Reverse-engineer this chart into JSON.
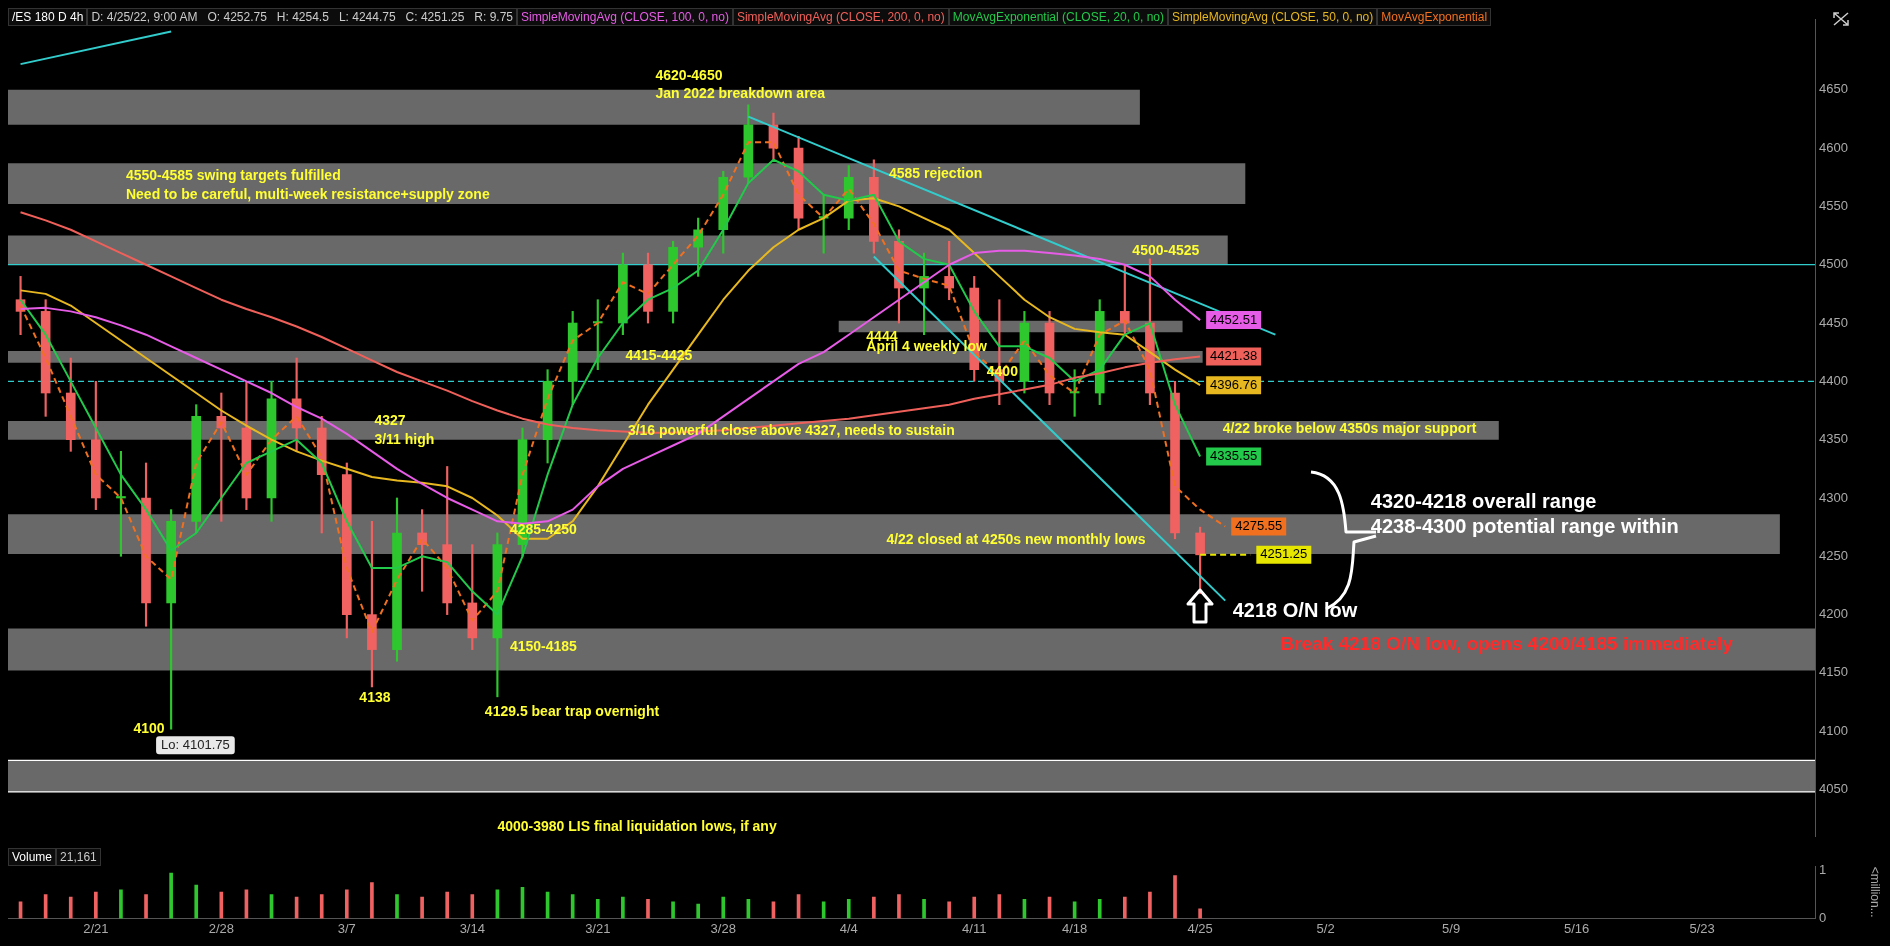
{
  "chart_data": [
    {
      "type": "candlestick",
      "title": "/ES 180 D 4h",
      "subtitle": "D: 4/25/22, 9:00 AM   O: 4252.75   H: 4254.5   L: 4244.75   C: 4251.25   R: 9.75",
      "categories": [
        null,
        null,
        null,
        "2/21",
        null,
        null,
        null,
        null,
        "2/28",
        null,
        null,
        null,
        null,
        "3/7",
        null,
        null,
        null,
        null,
        "3/14",
        null,
        null,
        null,
        null,
        "3/21",
        null,
        null,
        null,
        null,
        "3/28",
        null,
        null,
        null,
        null,
        "4/4",
        null,
        null,
        null,
        null,
        "4/11",
        null,
        null,
        null,
        "4/18",
        null,
        null,
        null,
        null,
        "4/25",
        null,
        null,
        null,
        null,
        "5/2",
        null,
        null,
        null,
        null,
        "5/9",
        null,
        null,
        null,
        null,
        "5/16",
        null,
        null,
        null,
        null,
        "5/23",
        null,
        null,
        null,
        null
      ],
      "ohlc": [
        [
          4470,
          4490,
          4440,
          4460
        ],
        [
          4460,
          4470,
          4370,
          4390
        ],
        [
          4390,
          4420,
          4340,
          4350
        ],
        [
          4350,
          4400,
          4290,
          4300
        ],
        [
          4300,
          4340,
          4250,
          4300
        ],
        [
          4300,
          4330,
          4190,
          4210
        ],
        [
          4210,
          4290,
          4101.75,
          4280
        ],
        [
          4280,
          4380,
          4270,
          4370
        ],
        [
          4370,
          4390,
          4280,
          4360
        ],
        [
          4360,
          4400,
          4290,
          4300
        ],
        [
          4300,
          4400,
          4280,
          4385
        ],
        [
          4385,
          4420,
          4340,
          4360
        ],
        [
          4360,
          4370,
          4270,
          4320
        ],
        [
          4320,
          4330,
          4180,
          4200
        ],
        [
          4200,
          4280,
          4138,
          4170
        ],
        [
          4170,
          4300,
          4160,
          4270
        ],
        [
          4270,
          4290,
          4220,
          4260
        ],
        [
          4260,
          4327,
          4200,
          4210
        ],
        [
          4210,
          4260,
          4170,
          4180
        ],
        [
          4180,
          4270,
          4129.5,
          4260
        ],
        [
          4260,
          4360,
          4250,
          4350
        ],
        [
          4350,
          4410,
          4330,
          4400
        ],
        [
          4400,
          4460,
          4380,
          4450
        ],
        [
          4450,
          4470,
          4410,
          4450
        ],
        [
          4450,
          4510,
          4440,
          4500
        ],
        [
          4500,
          4510,
          4450,
          4460
        ],
        [
          4460,
          4520,
          4450,
          4515
        ],
        [
          4515,
          4540,
          4490,
          4530
        ],
        [
          4530,
          4580,
          4510,
          4575
        ],
        [
          4575,
          4637,
          4570,
          4620
        ],
        [
          4620,
          4630,
          4590,
          4600
        ],
        [
          4600,
          4610,
          4530,
          4540
        ],
        [
          4540,
          4560,
          4510,
          4540
        ],
        [
          4540,
          4585,
          4530,
          4575
        ],
        [
          4575,
          4590,
          4510,
          4520
        ],
        [
          4520,
          4530,
          4450,
          4480
        ],
        [
          4480,
          4510,
          4440,
          4490
        ],
        [
          4490,
          4520,
          4470,
          4480
        ],
        [
          4480,
          4490,
          4400,
          4410
        ],
        [
          4410,
          4470,
          4380,
          4400
        ],
        [
          4400,
          4460,
          4390,
          4450
        ],
        [
          4450,
          4460,
          4380,
          4390
        ],
        [
          4390,
          4410,
          4370,
          4390
        ],
        [
          4390,
          4470,
          4380,
          4460
        ],
        [
          4460,
          4500,
          4440,
          4450
        ],
        [
          4450,
          4505,
          4380,
          4390
        ],
        [
          4390,
          4400,
          4265,
          4270
        ],
        [
          4270,
          4275,
          4218,
          4251.25
        ],
        null,
        null,
        null,
        null,
        null,
        null,
        null,
        null,
        null,
        null,
        null,
        null,
        null,
        null,
        null,
        null,
        null,
        null,
        null,
        null,
        null,
        null,
        null,
        null
      ],
      "colors": [
        "#f06262",
        "#f06262",
        "#f06262",
        "#f06262",
        "#2ec82e",
        "#f06262",
        "#2ec82e",
        "#2ec82e",
        "#f06262",
        "#f06262",
        "#2ec82e",
        "#f06262",
        "#f06262",
        "#f06262",
        "#f06262",
        "#2ec82e",
        "#f06262",
        "#f06262",
        "#f06262",
        "#2ec82e",
        "#2ec82e",
        "#2ec82e",
        "#2ec82e",
        "#2ec82e",
        "#2ec82e",
        "#f06262",
        "#2ec82e",
        "#2ec82e",
        "#2ec82e",
        "#2ec82e",
        "#f06262",
        "#f06262",
        "#2ec82e",
        "#2ec82e",
        "#f06262",
        "#f06262",
        "#2ec82e",
        "#f06262",
        "#f06262",
        "#f06262",
        "#2ec82e",
        "#f06262",
        "#2ec82e",
        "#2ec82e",
        "#f06262",
        "#f06262",
        "#f06262",
        "#f06262",
        null,
        null,
        null,
        null,
        null,
        null,
        null,
        null,
        null,
        null,
        null,
        null,
        null,
        null,
        null,
        null,
        null,
        null,
        null,
        null,
        null,
        null,
        null,
        null
      ],
      "series": [
        {
          "type": "line",
          "name": "SimpleMovingAvg (CLOSE, 100, 0, no)",
          "color": "#e75ce7",
          "values": [
            4462,
            4463,
            4460,
            4455,
            4448,
            4440,
            4430,
            4420,
            4410,
            4400,
            4390,
            4378,
            4368,
            4355,
            4340,
            4325,
            4312,
            4300,
            4290,
            4280,
            4278,
            4280,
            4290,
            4310,
            4325,
            4335,
            4345,
            4355,
            4370,
            4385,
            4400,
            4415,
            4425,
            4440,
            4455,
            4470,
            4485,
            4500,
            4510,
            4512,
            4512,
            4510,
            4508,
            4505,
            4500,
            4490,
            4470,
            4452.51,
            null,
            null,
            null,
            null,
            null,
            null,
            null,
            null,
            null,
            null,
            null,
            null,
            null,
            null,
            null,
            null,
            null,
            null,
            null,
            null,
            null,
            null,
            null,
            null
          ],
          "value_labels": [
            null,
            null,
            null,
            null,
            null,
            null,
            null,
            null,
            null,
            null,
            null,
            null,
            null,
            null,
            null,
            null,
            null,
            null,
            null,
            null,
            null,
            null,
            null,
            null,
            null,
            null,
            null,
            null,
            null,
            null,
            null,
            null,
            null,
            null,
            null,
            null,
            null,
            null,
            null,
            null,
            null,
            null,
            null,
            null,
            null,
            null,
            null,
            "4452.51",
            null,
            null,
            null,
            null,
            null,
            null,
            null,
            null,
            null,
            null,
            null,
            null,
            null,
            null,
            null,
            null,
            null,
            null,
            null,
            null,
            null,
            null,
            null,
            null
          ]
        },
        {
          "type": "line",
          "name": "SimpleMovingAvg (CLOSE, 200, 0, no)",
          "color": "#f0605a",
          "values": [
            4545,
            4538,
            4530,
            4520,
            4510,
            4500,
            4490,
            4480,
            4470,
            4462,
            4455,
            4447,
            4438,
            4428,
            4418,
            4408,
            4400,
            4392,
            4383,
            4375,
            4368,
            4363,
            4360,
            4358,
            4357,
            4356,
            4356,
            4357,
            4358,
            4360,
            4362,
            4364,
            4366,
            4368,
            4371,
            4374,
            4377,
            4380,
            4385,
            4389,
            4393,
            4397,
            4403,
            4407,
            4412,
            4416,
            4419,
            4421.38,
            null,
            null,
            null,
            null,
            null,
            null,
            null,
            null,
            null,
            null,
            null,
            null,
            null,
            null,
            null,
            null,
            null,
            null,
            null,
            null,
            null,
            null,
            null,
            null
          ],
          "value_labels": [
            null,
            null,
            null,
            null,
            null,
            null,
            null,
            null,
            null,
            null,
            null,
            null,
            null,
            null,
            null,
            null,
            null,
            null,
            null,
            null,
            null,
            null,
            null,
            null,
            null,
            null,
            null,
            null,
            null,
            null,
            null,
            null,
            null,
            null,
            null,
            null,
            null,
            null,
            null,
            null,
            null,
            null,
            null,
            null,
            null,
            null,
            null,
            "4421.38",
            null,
            null,
            null,
            null,
            null,
            null,
            null,
            null,
            null,
            null,
            null,
            null,
            null,
            null,
            null,
            null,
            null,
            null,
            null,
            null,
            null,
            null,
            null,
            null
          ]
        },
        {
          "type": "line",
          "name": "MovAvgExponential (CLOSE, 20, 0, no)",
          "color": "#22c94a",
          "values": [
            4470,
            4440,
            4400,
            4360,
            4320,
            4290,
            4255,
            4270,
            4300,
            4330,
            4340,
            4350,
            4330,
            4280,
            4240,
            4240,
            4250,
            4245,
            4220,
            4200,
            4250,
            4320,
            4380,
            4420,
            4450,
            4470,
            4480,
            4495,
            4530,
            4570,
            4590,
            4580,
            4560,
            4555,
            4560,
            4520,
            4505,
            4500,
            4460,
            4430,
            4430,
            4420,
            4400,
            4410,
            4440,
            4450,
            4380,
            4335.55,
            null,
            null,
            null,
            null,
            null,
            null,
            null,
            null,
            null,
            null,
            null,
            null,
            null,
            null,
            null,
            null,
            null,
            null,
            null,
            null,
            null,
            null,
            null,
            null
          ],
          "value_labels": [
            null,
            null,
            null,
            null,
            null,
            null,
            null,
            null,
            null,
            null,
            null,
            null,
            null,
            null,
            null,
            null,
            null,
            null,
            null,
            null,
            null,
            null,
            null,
            null,
            null,
            null,
            null,
            null,
            null,
            null,
            null,
            null,
            null,
            null,
            null,
            null,
            null,
            null,
            null,
            null,
            null,
            null,
            null,
            null,
            null,
            null,
            null,
            "4335.55",
            null,
            null,
            null,
            null,
            null,
            null,
            null,
            null,
            null,
            null,
            null,
            null,
            null,
            null,
            null,
            null,
            null,
            null,
            null,
            null,
            null,
            null,
            null,
            null
          ]
        },
        {
          "type": "line",
          "name": "SimpleMovingAvg (CLOSE, 50, 0, no)",
          "color": "#e8b820",
          "values": [
            4478,
            4475,
            4465,
            4450,
            4435,
            4420,
            4405,
            4390,
            4375,
            4362,
            4350,
            4340,
            4332,
            4325,
            4318,
            4315,
            4313,
            4310,
            4300,
            4285,
            4265,
            4265,
            4280,
            4310,
            4345,
            4380,
            4410,
            4440,
            4470,
            4495,
            4515,
            4530,
            4540,
            4555,
            4557,
            4550,
            4540,
            4530,
            4510,
            4490,
            4470,
            4455,
            4445,
            4442,
            4440,
            4425,
            4410,
            4396.76,
            null,
            null,
            null,
            null,
            null,
            null,
            null,
            null,
            null,
            null,
            null,
            null,
            null,
            null,
            null,
            null,
            null,
            null,
            null,
            null,
            null,
            null,
            null,
            null
          ],
          "value_labels": [
            null,
            null,
            null,
            null,
            null,
            null,
            null,
            null,
            null,
            null,
            null,
            null,
            null,
            null,
            null,
            null,
            null,
            null,
            null,
            null,
            null,
            null,
            null,
            null,
            null,
            null,
            null,
            null,
            null,
            null,
            null,
            null,
            null,
            null,
            null,
            null,
            null,
            null,
            null,
            null,
            null,
            null,
            null,
            null,
            null,
            null,
            null,
            "4396.76",
            null,
            null,
            null,
            null,
            null,
            null,
            null,
            null,
            null,
            null,
            null,
            null,
            null,
            null,
            null,
            null,
            null,
            null,
            null,
            null,
            null,
            null,
            null,
            null
          ]
        },
        {
          "type": "line",
          "name": "MovAvgExponential",
          "color": "#f07020",
          "line_style": "dashed",
          "values": [
            4465,
            4420,
            4370,
            4320,
            4300,
            4250,
            4230,
            4330,
            4365,
            4320,
            4350,
            4370,
            4335,
            4240,
            4185,
            4230,
            4265,
            4240,
            4195,
            4220,
            4320,
            4385,
            4435,
            4450,
            4485,
            4475,
            4500,
            4525,
            4560,
            4605,
            4605,
            4560,
            4540,
            4565,
            4535,
            4495,
            4488,
            4482,
            4425,
            4405,
            4435,
            4405,
            4390,
            4440,
            4452,
            4410,
            4310,
            4290,
            4275.55,
            null,
            null,
            null,
            null,
            null,
            null,
            null,
            null,
            null,
            null,
            null,
            null,
            null,
            null,
            null,
            null,
            null,
            null,
            null,
            null,
            null,
            null,
            null
          ],
          "value_labels": [
            null,
            null,
            null,
            null,
            null,
            null,
            null,
            null,
            null,
            null,
            null,
            null,
            null,
            null,
            null,
            null,
            null,
            null,
            null,
            null,
            null,
            null,
            null,
            null,
            null,
            null,
            null,
            null,
            null,
            null,
            null,
            null,
            null,
            null,
            null,
            null,
            null,
            null,
            null,
            null,
            null,
            null,
            null,
            null,
            null,
            null,
            null,
            null,
            "4275.55",
            null,
            null,
            null,
            null,
            null,
            null,
            null,
            null,
            null,
            null,
            null,
            null,
            null,
            null,
            null,
            null,
            null,
            null,
            null,
            null,
            null,
            null,
            null
          ]
        },
        {
          "type": "line",
          "color": "#e6e600",
          "line_style": "dashed",
          "values": [
            null,
            null,
            null,
            null,
            null,
            null,
            null,
            null,
            null,
            null,
            null,
            null,
            null,
            null,
            null,
            null,
            null,
            null,
            null,
            null,
            null,
            null,
            null,
            null,
            null,
            null,
            null,
            null,
            null,
            null,
            null,
            null,
            null,
            null,
            null,
            null,
            null,
            null,
            null,
            null,
            null,
            null,
            null,
            null,
            null,
            null,
            null,
            4251.25,
            4251.25,
            4251.25,
            null,
            null,
            null,
            null,
            null,
            null,
            null,
            null,
            null,
            null,
            null,
            null,
            null,
            null,
            null,
            null,
            null,
            null,
            null,
            null,
            null,
            null
          ],
          "value_labels": [
            null,
            null,
            null,
            null,
            null,
            null,
            null,
            null,
            null,
            null,
            null,
            null,
            null,
            null,
            null,
            null,
            null,
            null,
            null,
            null,
            null,
            null,
            null,
            null,
            null,
            null,
            null,
            null,
            null,
            null,
            null,
            null,
            null,
            null,
            null,
            null,
            null,
            null,
            null,
            null,
            null,
            null,
            null,
            null,
            null,
            null,
            null,
            null,
            null,
            "4251.25",
            null,
            null,
            null,
            null,
            null,
            null,
            null,
            null,
            null,
            null,
            null,
            null,
            null,
            null,
            null,
            null,
            null,
            null,
            null,
            null,
            null,
            null
          ]
        },
        {
          "type": "line",
          "color": "#33cccc",
          "values": [
            4672,
            null,
            null,
            null,
            null,
            null,
            4700,
            null,
            null,
            null,
            null,
            null,
            null,
            null,
            null,
            null,
            null,
            null,
            null,
            null,
            null,
            null,
            null,
            null,
            null,
            null,
            null,
            null,
            null,
            null,
            null,
            null,
            null,
            null,
            null,
            null,
            null,
            null,
            null,
            null,
            null,
            null,
            null,
            null,
            null,
            null,
            null,
            null,
            null,
            null,
            null,
            null,
            null,
            null,
            null,
            null,
            null,
            null,
            null,
            null,
            null,
            null,
            null,
            null,
            null,
            null,
            null,
            null,
            null,
            null,
            null,
            null
          ]
        },
        {
          "type": "line",
          "color": "#33cccc",
          "values": [
            null,
            null,
            null,
            null,
            null,
            null,
            null,
            null,
            null,
            null,
            null,
            null,
            null,
            null,
            null,
            null,
            null,
            null,
            null,
            null,
            null,
            null,
            null,
            null,
            null,
            null,
            null,
            null,
            null,
            4627,
            null,
            null,
            null,
            null,
            null,
            null,
            null,
            null,
            null,
            null,
            null,
            null,
            null,
            null,
            null,
            null,
            null,
            null,
            null,
            null,
            4440,
            null,
            null,
            null,
            null,
            null,
            null,
            null,
            null,
            null,
            null,
            null,
            null,
            null,
            null,
            null,
            null,
            null,
            null,
            null,
            null,
            null
          ]
        },
        {
          "type": "line",
          "color": "#33cccc",
          "values": [
            null,
            null,
            null,
            null,
            null,
            null,
            null,
            null,
            null,
            null,
            null,
            null,
            null,
            null,
            null,
            null,
            null,
            null,
            null,
            null,
            null,
            null,
            null,
            null,
            null,
            null,
            null,
            null,
            null,
            null,
            null,
            null,
            null,
            null,
            4507,
            null,
            null,
            null,
            null,
            null,
            null,
            null,
            null,
            null,
            null,
            null,
            null,
            null,
            4212,
            null,
            null,
            null,
            null,
            null,
            null,
            null,
            null,
            null,
            null,
            null,
            null,
            null,
            null,
            null,
            null,
            null,
            null,
            null,
            null,
            null,
            null,
            null
          ]
        }
      ],
      "bands": [
        {
          "axis": "y",
          "from": 4620,
          "to": 4650,
          "color": "#696969"
        },
        {
          "axis": "y",
          "from": 4552,
          "to": 4587,
          "color": "#696969"
        },
        {
          "axis": "y",
          "from": 4500,
          "to": 4525,
          "color": "#696969"
        },
        {
          "axis": "y",
          "from": 4442,
          "to": 4452,
          "color": "#696969"
        },
        {
          "axis": "y",
          "from": 4416,
          "to": 4426,
          "color": "#696969"
        },
        {
          "axis": "y",
          "from": 4350,
          "to": 4366,
          "color": "#696969"
        },
        {
          "axis": "y",
          "from": 4252,
          "to": 4286,
          "color": "#696969"
        },
        {
          "axis": "y",
          "from": 4152,
          "to": 4188,
          "color": "#696969"
        },
        {
          "axis": "y",
          "from": 4048,
          "to": 4075,
          "color": "#696969"
        }
      ],
      "ref_lines": [
        {
          "axis": "y",
          "value": 4500,
          "color": "#33cccc",
          "line_style": "solid"
        },
        {
          "axis": "y",
          "value": 4400,
          "color": "#33cccc",
          "line_style": "dashed"
        },
        {
          "axis": "y",
          "value": 4075,
          "color": "#ffffff",
          "line_style": "solid"
        },
        {
          "axis": "y",
          "value": 4048,
          "color": "#ffffff",
          "line_style": "solid"
        }
      ],
      "annotations": [
        "4620-4650",
        "Jan 2022 breakdown area",
        "4550-4585 swing targets fulfilled",
        "Need to be careful, multi-week resistance+supply zone",
        "4585 rejection",
        "4500-4525",
        "4444",
        "April 4 weekly low",
        "4415-4425",
        "4400",
        "4327",
        "3/11 high",
        "3/16 powerful close above 4327, needs to sustain",
        "4/22 broke below 4350s major support",
        "4285-4250",
        "4/22 closed at 4250s new monthly lows",
        "4320-4218 overall range",
        "4238-4300 potential range within",
        "4218 O/N low",
        "Break 4218 O/N low, opens 4200/4185 immediately",
        "4150-4185",
        "4138",
        "4129.5 bear trap overnight",
        "4100",
        "Lo: 4101.75",
        "4000-3980 LIS final liquidation lows, if any"
      ],
      "ylim": [
        4010,
        4710
      ],
      "yticks": [
        4050,
        4100,
        4150,
        4200,
        4250,
        4300,
        4350,
        4400,
        4450,
        4500,
        4550,
        4600,
        4650
      ],
      "tick_labels": "y",
      "legend": "top"
    },
    {
      "type": "bar",
      "title": "Volume",
      "subtitle": "21,161",
      "ylabel": "<million...",
      "values": [
        0.35,
        0.5,
        0.45,
        0.55,
        0.6,
        0.5,
        0.95,
        0.7,
        0.55,
        0.6,
        0.5,
        0.45,
        0.5,
        0.6,
        0.75,
        0.5,
        0.45,
        0.55,
        0.5,
        0.6,
        0.65,
        0.55,
        0.5,
        0.4,
        0.45,
        0.4,
        0.35,
        0.3,
        0.45,
        0.4,
        0.35,
        0.5,
        0.35,
        0.4,
        0.45,
        0.5,
        0.4,
        0.35,
        0.45,
        0.5,
        0.4,
        0.45,
        0.35,
        0.4,
        0.45,
        0.55,
        0.9,
        0.2,
        null,
        null,
        null,
        null,
        null,
        null,
        null,
        null,
        null,
        null,
        null,
        null,
        null,
        null,
        null,
        null,
        null,
        null,
        null,
        null,
        null,
        null,
        null,
        null
      ],
      "colors": [
        "#f06262",
        "#f06262",
        "#f06262",
        "#f06262",
        "#2ec82e",
        "#f06262",
        "#2ec82e",
        "#2ec82e",
        "#f06262",
        "#f06262",
        "#2ec82e",
        "#f06262",
        "#f06262",
        "#f06262",
        "#f06262",
        "#2ec82e",
        "#f06262",
        "#f06262",
        "#f06262",
        "#2ec82e",
        "#2ec82e",
        "#2ec82e",
        "#2ec82e",
        "#2ec82e",
        "#2ec82e",
        "#f06262",
        "#2ec82e",
        "#2ec82e",
        "#2ec82e",
        "#2ec82e",
        "#f06262",
        "#f06262",
        "#2ec82e",
        "#2ec82e",
        "#f06262",
        "#f06262",
        "#2ec82e",
        "#f06262",
        "#f06262",
        "#f06262",
        "#2ec82e",
        "#f06262",
        "#2ec82e",
        "#2ec82e",
        "#f06262",
        "#f06262",
        "#f06262",
        "#f06262",
        null,
        null,
        null,
        null,
        null,
        null,
        null,
        null,
        null,
        null,
        null,
        null,
        null,
        null,
        null,
        null,
        null,
        null,
        null,
        null,
        null,
        null,
        null,
        null
      ],
      "ylim": [
        0,
        1.1
      ],
      "yticks": [
        0,
        1
      ]
    }
  ]
}
